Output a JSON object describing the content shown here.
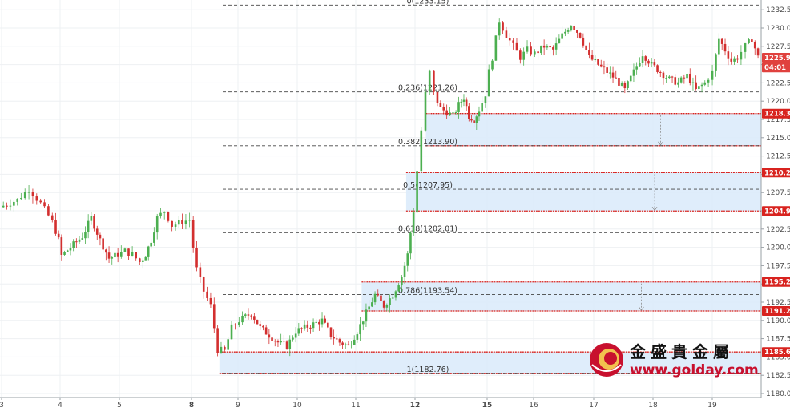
{
  "chart_data": {
    "type": "candlestick",
    "ylim": [
      1180,
      1233.5
    ],
    "y_ticks": [
      "1180.00",
      "1182.50",
      "1185.00",
      "1187.50",
      "1190.00",
      "1192.50",
      "1195.00",
      "1197.50",
      "1200.00",
      "1202.50",
      "1205.00",
      "1207.50",
      "1210.00",
      "1212.50",
      "1215.00",
      "1217.50",
      "1220.00",
      "1222.50",
      "1225.00",
      "1227.50",
      "1230.00",
      "1232.50"
    ],
    "x_ticks": [
      "3",
      "4",
      "5",
      "8",
      "9",
      "10",
      "11",
      "12",
      "15",
      "16",
      "17",
      "18",
      "19"
    ],
    "bold_x_ticks": [
      "8",
      "12",
      "15"
    ],
    "price_tags": [
      {
        "label": "1225.94",
        "value": 1225.94,
        "color": "#e0413e"
      },
      {
        "label": "04:01",
        "value": 1224.6,
        "color": "#e0413e"
      },
      {
        "label": "1218.30",
        "value": 1218.3,
        "color": "#d8231f"
      },
      {
        "label": "1210.23",
        "value": 1210.23,
        "color": "#d8231f"
      },
      {
        "label": "1204.97",
        "value": 1204.97,
        "color": "#d8231f"
      },
      {
        "label": "1195.27",
        "value": 1195.27,
        "color": "#d8231f"
      },
      {
        "label": "1191.29",
        "value": 1191.29,
        "color": "#d8231f"
      },
      {
        "label": "1185.68",
        "value": 1185.68,
        "color": "#d8231f"
      }
    ],
    "fib_levels": [
      {
        "label": "0(1233.15)",
        "value": 1233.15
      },
      {
        "label": "0.236(1221.26)",
        "value": 1221.26
      },
      {
        "label": "0.382(1213.90)",
        "value": 1213.9
      },
      {
        "label": "0.5(1207.95)",
        "value": 1207.95
      },
      {
        "label": "0.618(1202.01)",
        "value": 1202.01
      },
      {
        "label": "0.786(1193.54)",
        "value": 1193.54
      },
      {
        "label": "1(1182.76)",
        "value": 1182.76
      }
    ],
    "zones": [
      {
        "top": 1218.3,
        "bottom": 1213.9,
        "start_day": 12.3
      },
      {
        "top": 1210.23,
        "bottom": 1204.97,
        "start_day": 11.85
      },
      {
        "top": 1195.27,
        "bottom": 1191.29,
        "start_day": 11.1
      },
      {
        "top": 1185.68,
        "bottom": 1182.76,
        "start_day": 8.6
      }
    ],
    "candle_anchors": [
      [
        2.0,
        1205.5
      ],
      [
        2.3,
        1206.5
      ],
      [
        2.5,
        1208.0
      ],
      [
        2.7,
        1206.0
      ],
      [
        2.9,
        1203.5
      ],
      [
        3.1,
        1201.0
      ],
      [
        3.3,
        1199.0
      ],
      [
        3.5,
        1198.5
      ],
      [
        3.7,
        1199.0
      ],
      [
        3.85,
        1197.5
      ],
      [
        4.0,
        1198.5
      ],
      [
        4.2,
        1200.0
      ],
      [
        4.4,
        1201.5
      ],
      [
        4.55,
        1204.0
      ],
      [
        4.7,
        1201.0
      ],
      [
        4.85,
        1198.5
      ],
      [
        5.0,
        1199.0
      ],
      [
        5.2,
        1199.5
      ],
      [
        5.4,
        1199.0
      ],
      [
        5.6,
        1198.0
      ],
      [
        5.75,
        1199.0
      ],
      [
        5.9,
        1201.0
      ],
      [
        6.05,
        1204.0
      ],
      [
        6.2,
        1205.0
      ],
      [
        6.35,
        1203.0
      ],
      [
        6.55,
        1203.5
      ],
      [
        6.7,
        1203.8
      ],
      [
        8.0,
        1203.0
      ],
      [
        8.15,
        1197.0
      ],
      [
        8.3,
        1194.0
      ],
      [
        8.45,
        1192.0
      ],
      [
        8.6,
        1186.0
      ],
      [
        8.75,
        1185.8
      ],
      [
        8.9,
        1189.0
      ],
      [
        9.05,
        1190.0
      ],
      [
        9.25,
        1191.0
      ],
      [
        9.4,
        1189.0
      ],
      [
        9.55,
        1188.0
      ],
      [
        9.7,
        1187.0
      ],
      [
        9.85,
        1186.5
      ],
      [
        10.0,
        1188.5
      ],
      [
        10.15,
        1189.0
      ],
      [
        10.3,
        1189.5
      ],
      [
        10.45,
        1190.0
      ],
      [
        10.6,
        1188.0
      ],
      [
        10.75,
        1187.0
      ],
      [
        10.9,
        1186.5
      ],
      [
        11.05,
        1188.5
      ],
      [
        11.2,
        1191.0
      ],
      [
        11.35,
        1193.5
      ],
      [
        11.5,
        1192.0
      ],
      [
        11.65,
        1193.5
      ],
      [
        11.8,
        1196.0
      ],
      [
        11.9,
        1199.0
      ],
      [
        12.0,
        1205.0
      ],
      [
        12.1,
        1210.5
      ],
      [
        12.2,
        1216.0
      ],
      [
        12.3,
        1221.0
      ],
      [
        12.4,
        1224.0
      ],
      [
        12.5,
        1221.0
      ],
      [
        12.65,
        1219.0
      ],
      [
        12.8,
        1218.5
      ],
      [
        12.95,
        1218.0
      ],
      [
        13.1,
        1219.5
      ],
      [
        13.25,
        1220.5
      ],
      [
        13.4,
        1218.0
      ],
      [
        13.55,
        1217.5
      ],
      [
        13.7,
        1218.8
      ],
      [
        13.9,
        1221.0
      ],
      [
        15.0,
        1222.0
      ],
      [
        15.15,
        1226.0
      ],
      [
        15.3,
        1231.0
      ],
      [
        15.45,
        1229.0
      ],
      [
        15.6,
        1227.5
      ],
      [
        15.75,
        1226.0
      ],
      [
        15.9,
        1227.0
      ],
      [
        16.05,
        1226.5
      ],
      [
        16.2,
        1227.5
      ],
      [
        16.35,
        1227.0
      ],
      [
        16.5,
        1229.0
      ],
      [
        16.65,
        1230.5
      ],
      [
        16.8,
        1229.0
      ],
      [
        16.95,
        1226.0
      ],
      [
        17.1,
        1225.0
      ],
      [
        17.25,
        1224.0
      ],
      [
        17.4,
        1223.0
      ],
      [
        17.55,
        1221.5
      ],
      [
        17.7,
        1224.0
      ],
      [
        17.85,
        1226.5
      ],
      [
        18.0,
        1225.0
      ],
      [
        18.15,
        1224.0
      ],
      [
        18.3,
        1223.0
      ],
      [
        18.45,
        1222.5
      ],
      [
        18.6,
        1223.5
      ],
      [
        18.75,
        1221.5
      ],
      [
        18.9,
        1222.5
      ],
      [
        19.05,
        1224.0
      ],
      [
        19.2,
        1228.5
      ],
      [
        19.35,
        1227.0
      ],
      [
        19.5,
        1225.5
      ],
      [
        19.65,
        1226.0
      ],
      [
        19.85,
        1227.5
      ],
      [
        20.0,
        1228.5
      ],
      [
        20.15,
        1226.0
      ]
    ]
  },
  "logo": {
    "title": "金盛貴金屬",
    "url": "www.golday.com",
    "emblem": "gold-coin-emblem"
  },
  "colors": {
    "up": "#4caf50",
    "down": "#d32f2f",
    "zone_fill": "#dcebfb",
    "zone_line": "#d8231f",
    "fib_line": "#444444",
    "grid": "#eef0f3"
  }
}
